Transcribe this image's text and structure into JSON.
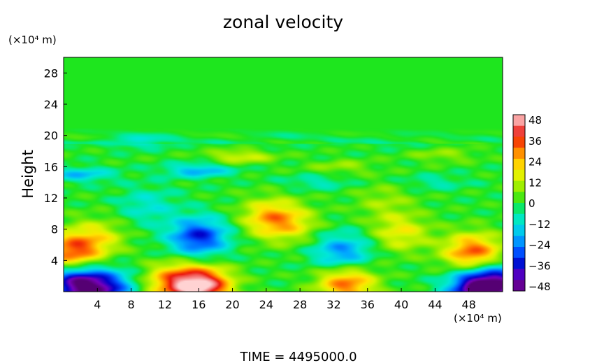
{
  "chart_data": {
    "type": "heatmap",
    "title": "zonal velocity",
    "ylabel": "Height",
    "y_unit_label": "(×10⁴ m)",
    "x_unit_label": "(×10⁴ m)",
    "footer": "TIME  =  4495000.0",
    "xlim": [
      0,
      52
    ],
    "ylim": [
      0,
      30
    ],
    "x_ticks": [
      "4",
      "8",
      "12",
      "16",
      "20",
      "24",
      "28",
      "32",
      "36",
      "40",
      "44",
      "48"
    ],
    "y_ticks": [
      "4",
      "8",
      "12",
      "16",
      "20",
      "24",
      "28"
    ],
    "colorbar": {
      "range": [
        -48,
        48
      ],
      "ticks": [
        "48",
        "36",
        "24",
        "12",
        "0",
        "−12",
        "−24",
        "−36",
        "−48"
      ]
    },
    "features": [
      {
        "x": 1,
        "y": 5,
        "value": 32
      },
      {
        "x": 4,
        "y": 7,
        "value": 14
      },
      {
        "x": 1.5,
        "y": 1,
        "value": -40
      },
      {
        "x": 5,
        "y": 0.3,
        "value": -30
      },
      {
        "x": 16,
        "y": 7,
        "value": -32
      },
      {
        "x": 16.5,
        "y": 0.7,
        "value": 44
      },
      {
        "x": 13,
        "y": 1.2,
        "value": 26
      },
      {
        "x": 24.5,
        "y": 9.5,
        "value": 22
      },
      {
        "x": 27,
        "y": 8.5,
        "value": 12
      },
      {
        "x": 33,
        "y": 5,
        "value": -22
      },
      {
        "x": 33.5,
        "y": 1,
        "value": 30
      },
      {
        "x": 48.5,
        "y": 5,
        "value": 32
      },
      {
        "x": 40,
        "y": 7.5,
        "value": 16
      },
      {
        "x": 49,
        "y": 0.4,
        "value": -44
      },
      {
        "x": 52,
        "y": 1,
        "value": -30
      },
      {
        "x": 9,
        "y": 19.5,
        "value": -22
      },
      {
        "x": 16,
        "y": 15.5,
        "value": -18
      },
      {
        "x": 21,
        "y": 17.3,
        "value": 14
      },
      {
        "x": 2,
        "y": 15,
        "value": -16
      },
      {
        "x": 33,
        "y": 16,
        "value": 8
      },
      {
        "x": 30,
        "y": 14,
        "value": -8
      },
      {
        "x": 44,
        "y": 14,
        "value": -7
      },
      {
        "x": 45,
        "y": 17.5,
        "value": 8
      },
      {
        "x": 10,
        "y": 11,
        "value": -10
      },
      {
        "x": 38,
        "y": 11.5,
        "value": 8
      },
      {
        "x": 26,
        "y": 19.8,
        "value": -8
      },
      {
        "x": 40,
        "y": 19.5,
        "value": -6
      }
    ]
  }
}
